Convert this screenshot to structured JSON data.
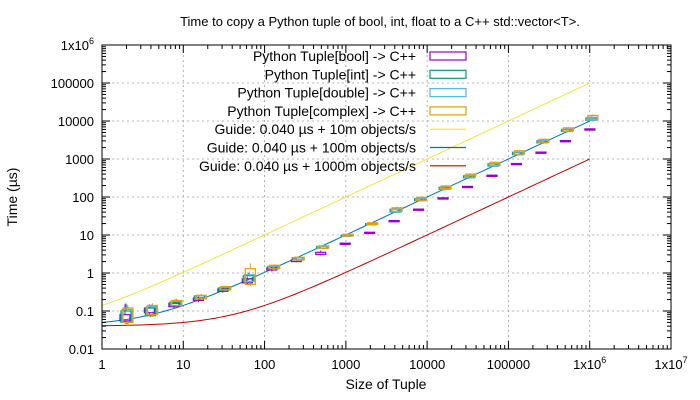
{
  "chart_data": {
    "type": "line",
    "title": "Time to copy a Python tuple of bool, int, float to a C++ std::vector<T>.",
    "xlabel": "Size of Tuple",
    "ylabel": "Time (µs)",
    "x_scale": "log",
    "y_scale": "log",
    "xlim": [
      1,
      10000000
    ],
    "ylim": [
      0.01,
      1000000
    ],
    "grid": true,
    "legend_position": "top-left",
    "x_ticks": [
      {
        "value": 1,
        "label": "1"
      },
      {
        "value": 10,
        "label": "10"
      },
      {
        "value": 100,
        "label": "100"
      },
      {
        "value": 1000,
        "label": "1000"
      },
      {
        "value": 10000,
        "label": "10000"
      },
      {
        "value": 100000,
        "label": "100000"
      },
      {
        "value": 1000000,
        "label": "1x10",
        "sup": "6"
      },
      {
        "value": 10000000,
        "label": "1x10",
        "sup": "7"
      }
    ],
    "y_ticks": [
      {
        "value": 0.01,
        "label": "0.01"
      },
      {
        "value": 0.1,
        "label": "0.1"
      },
      {
        "value": 1,
        "label": "1"
      },
      {
        "value": 10,
        "label": "10"
      },
      {
        "value": 100,
        "label": "100"
      },
      {
        "value": 1000,
        "label": "1000"
      },
      {
        "value": 10000,
        "label": "10000"
      },
      {
        "value": 100000,
        "label": "100000"
      },
      {
        "value": 1000000,
        "label": "1x10",
        "sup": "6"
      }
    ],
    "series": [
      {
        "name": "Python Tuple[bool] -> C++",
        "kind": "candlestick",
        "color": "#9400d3",
        "points": [
          {
            "x": 2,
            "low": 0.05,
            "q1": 0.055,
            "q3": 0.08,
            "high": 0.15
          },
          {
            "x": 4,
            "low": 0.08,
            "q1": 0.09,
            "q3": 0.12,
            "high": 0.15
          },
          {
            "x": 8,
            "low": 0.12,
            "q1": 0.13,
            "q3": 0.16,
            "high": 0.19
          },
          {
            "x": 16,
            "low": 0.17,
            "q1": 0.19,
            "q3": 0.22,
            "high": 0.24
          },
          {
            "x": 32,
            "low": 0.3,
            "q1": 0.33,
            "q3": 0.38,
            "high": 0.42
          },
          {
            "x": 64,
            "low": 0.5,
            "q1": 0.55,
            "q3": 0.7,
            "high": 0.8
          },
          {
            "x": 128,
            "low": 1.1,
            "q1": 1.2,
            "q3": 1.35,
            "high": 1.5
          },
          {
            "x": 256,
            "low": 1.9,
            "q1": 2.0,
            "q3": 2.2,
            "high": 2.4
          },
          {
            "x": 512,
            "low": 2.9,
            "q1": 3.1,
            "q3": 3.5,
            "high": 3.9
          },
          {
            "x": 1024,
            "low": 5.7,
            "q1": 5.9,
            "q3": 6.1,
            "high": 6.3
          },
          {
            "x": 2048,
            "low": 11,
            "q1": 11.3,
            "q3": 11.8,
            "high": 12
          },
          {
            "x": 4096,
            "low": 22,
            "q1": 23,
            "q3": 24,
            "high": 25
          },
          {
            "x": 8192,
            "low": 45,
            "q1": 46,
            "q3": 48,
            "high": 50
          },
          {
            "x": 16384,
            "low": 88,
            "q1": 90,
            "q3": 95,
            "high": 98
          },
          {
            "x": 32768,
            "low": 180,
            "q1": 185,
            "q3": 190,
            "high": 195
          },
          {
            "x": 65536,
            "low": 360,
            "q1": 365,
            "q3": 375,
            "high": 380
          },
          {
            "x": 131072,
            "low": 730,
            "q1": 740,
            "q3": 760,
            "high": 770
          },
          {
            "x": 262144,
            "low": 1450,
            "q1": 1480,
            "q3": 1520,
            "high": 1550
          },
          {
            "x": 524288,
            "low": 2900,
            "q1": 2950,
            "q3": 3050,
            "high": 3100
          },
          {
            "x": 1048576,
            "low": 5800,
            "q1": 5900,
            "q3": 6200,
            "high": 6400
          }
        ]
      },
      {
        "name": "Python Tuple[int] -> C++",
        "kind": "candlestick",
        "color": "#009e73",
        "points": [
          {
            "x": 2,
            "low": 0.045,
            "q1": 0.05,
            "q3": 0.1,
            "high": 0.16
          },
          {
            "x": 4,
            "low": 0.07,
            "q1": 0.075,
            "q3": 0.12,
            "high": 0.14
          },
          {
            "x": 8,
            "low": 0.13,
            "q1": 0.14,
            "q3": 0.17,
            "high": 0.2
          },
          {
            "x": 16,
            "low": 0.2,
            "q1": 0.21,
            "q3": 0.25,
            "high": 0.26
          },
          {
            "x": 32,
            "low": 0.33,
            "q1": 0.35,
            "q3": 0.41,
            "high": 0.44
          },
          {
            "x": 64,
            "low": 0.55,
            "q1": 0.6,
            "q3": 0.85,
            "high": 1.0
          },
          {
            "x": 128,
            "low": 1.2,
            "q1": 1.3,
            "q3": 1.5,
            "high": 1.6
          },
          {
            "x": 256,
            "low": 2.1,
            "q1": 2.2,
            "q3": 2.5,
            "high": 2.6
          },
          {
            "x": 512,
            "low": 4.3,
            "q1": 4.5,
            "q3": 5.0,
            "high": 5.3
          },
          {
            "x": 1024,
            "low": 9,
            "q1": 9.3,
            "q3": 10,
            "high": 10.5
          },
          {
            "x": 2048,
            "low": 18,
            "q1": 19,
            "q3": 20,
            "high": 21
          },
          {
            "x": 4096,
            "low": 38,
            "q1": 40,
            "q3": 48,
            "high": 52
          },
          {
            "x": 8192,
            "low": 78,
            "q1": 80,
            "q3": 90,
            "high": 95
          },
          {
            "x": 16384,
            "low": 150,
            "q1": 160,
            "q3": 180,
            "high": 190
          },
          {
            "x": 32768,
            "low": 300,
            "q1": 320,
            "q3": 360,
            "high": 380
          },
          {
            "x": 65536,
            "low": 620,
            "q1": 650,
            "q3": 750,
            "high": 800
          },
          {
            "x": 131072,
            "low": 1250,
            "q1": 1300,
            "q3": 1500,
            "high": 1600
          },
          {
            "x": 262144,
            "low": 2500,
            "q1": 2650,
            "q3": 3000,
            "high": 3200
          },
          {
            "x": 524288,
            "low": 5000,
            "q1": 5300,
            "q3": 6000,
            "high": 6300
          },
          {
            "x": 1048576,
            "low": 10000,
            "q1": 10500,
            "q3": 12000,
            "high": 13000
          }
        ]
      },
      {
        "name": "Python Tuple[double] -> C++",
        "kind": "candlestick",
        "color": "#56b4e9",
        "points": [
          {
            "x": 2,
            "low": 0.045,
            "q1": 0.05,
            "q3": 0.11,
            "high": 0.15
          },
          {
            "x": 4,
            "low": 0.07,
            "q1": 0.08,
            "q3": 0.13,
            "high": 0.15
          },
          {
            "x": 8,
            "low": 0.13,
            "q1": 0.14,
            "q3": 0.18,
            "high": 0.21
          },
          {
            "x": 16,
            "low": 0.2,
            "q1": 0.21,
            "q3": 0.25,
            "high": 0.27
          },
          {
            "x": 32,
            "low": 0.34,
            "q1": 0.36,
            "q3": 0.42,
            "high": 0.45
          },
          {
            "x": 64,
            "low": 0.55,
            "q1": 0.6,
            "q3": 0.9,
            "high": 1.1
          },
          {
            "x": 128,
            "low": 1.2,
            "q1": 1.3,
            "q3": 1.5,
            "high": 1.6
          },
          {
            "x": 256,
            "low": 2.1,
            "q1": 2.2,
            "q3": 2.5,
            "high": 2.6
          },
          {
            "x": 512,
            "low": 4.2,
            "q1": 4.5,
            "q3": 5.0,
            "high": 5.2
          },
          {
            "x": 1024,
            "low": 9,
            "q1": 9.3,
            "q3": 10,
            "high": 10.5
          },
          {
            "x": 2048,
            "low": 18,
            "q1": 19,
            "q3": 20,
            "high": 21
          },
          {
            "x": 4096,
            "low": 38,
            "q1": 40,
            "q3": 48,
            "high": 52
          },
          {
            "x": 8192,
            "low": 76,
            "q1": 80,
            "q3": 92,
            "high": 96
          },
          {
            "x": 16384,
            "low": 150,
            "q1": 160,
            "q3": 185,
            "high": 195
          },
          {
            "x": 32768,
            "low": 300,
            "q1": 320,
            "q3": 370,
            "high": 390
          },
          {
            "x": 65536,
            "low": 620,
            "q1": 650,
            "q3": 760,
            "high": 800
          },
          {
            "x": 131072,
            "low": 1250,
            "q1": 1300,
            "q3": 1520,
            "high": 1600
          },
          {
            "x": 262144,
            "low": 2500,
            "q1": 2650,
            "q3": 3100,
            "high": 3250
          },
          {
            "x": 524288,
            "low": 5000,
            "q1": 5300,
            "q3": 6100,
            "high": 6400
          },
          {
            "x": 1048576,
            "low": 10000,
            "q1": 10500,
            "q3": 12500,
            "high": 13500
          }
        ]
      },
      {
        "name": "Python Tuple[complex] -> C++",
        "kind": "candlestick",
        "color": "#e69f00",
        "points": [
          {
            "x": 2,
            "low": 0.04,
            "q1": 0.05,
            "q3": 0.12,
            "high": 0.14
          },
          {
            "x": 4,
            "low": 0.07,
            "q1": 0.08,
            "q3": 0.14,
            "high": 0.16
          },
          {
            "x": 8,
            "low": 0.13,
            "q1": 0.14,
            "q3": 0.19,
            "high": 0.21
          },
          {
            "x": 16,
            "low": 0.2,
            "q1": 0.21,
            "q3": 0.26,
            "high": 0.28
          },
          {
            "x": 32,
            "low": 0.34,
            "q1": 0.36,
            "q3": 0.44,
            "high": 0.47
          },
          {
            "x": 64,
            "low": 0.45,
            "q1": 0.5,
            "q3": 1.3,
            "high": 1.8
          },
          {
            "x": 128,
            "low": 1.2,
            "q1": 1.3,
            "q3": 1.6,
            "high": 1.7
          },
          {
            "x": 256,
            "low": 2.1,
            "q1": 2.2,
            "q3": 2.6,
            "high": 2.7
          },
          {
            "x": 512,
            "low": 4.2,
            "q1": 4.5,
            "q3": 5.2,
            "high": 5.5
          },
          {
            "x": 1024,
            "low": 9,
            "q1": 9.5,
            "q3": 10.5,
            "high": 11
          },
          {
            "x": 2048,
            "low": 18,
            "q1": 19,
            "q3": 21,
            "high": 22
          },
          {
            "x": 4096,
            "low": 38,
            "q1": 42,
            "q3": 52,
            "high": 56
          },
          {
            "x": 8192,
            "low": 78,
            "q1": 82,
            "q3": 98,
            "high": 105
          },
          {
            "x": 16384,
            "low": 155,
            "q1": 165,
            "q3": 195,
            "high": 205
          },
          {
            "x": 32768,
            "low": 310,
            "q1": 330,
            "q3": 400,
            "high": 420
          },
          {
            "x": 65536,
            "low": 640,
            "q1": 680,
            "q3": 820,
            "high": 860
          },
          {
            "x": 131072,
            "low": 1300,
            "q1": 1350,
            "q3": 1650,
            "high": 1750
          },
          {
            "x": 262144,
            "low": 2600,
            "q1": 2750,
            "q3": 3300,
            "high": 3500
          },
          {
            "x": 524288,
            "low": 5200,
            "q1": 5500,
            "q3": 6600,
            "high": 7000
          },
          {
            "x": 1048576,
            "low": 10500,
            "q1": 11000,
            "q3": 14000,
            "high": 15000
          }
        ]
      },
      {
        "name": "Guide: 0.040 µs + 10m objects/s",
        "kind": "line",
        "color": "#f0e442",
        "overhead_us": 0.04,
        "objects_per_second": 10000000
      },
      {
        "name": "Guide: 0.040 µs + 100m objects/s",
        "kind": "line",
        "color": "#0072b2",
        "overhead_us": 0.04,
        "objects_per_second": 100000000
      },
      {
        "name": "Guide: 0.040 µs + 1000m objects/s",
        "kind": "line",
        "color": "#c00000",
        "overhead_us": 0.04,
        "objects_per_second": 1000000000
      }
    ]
  }
}
